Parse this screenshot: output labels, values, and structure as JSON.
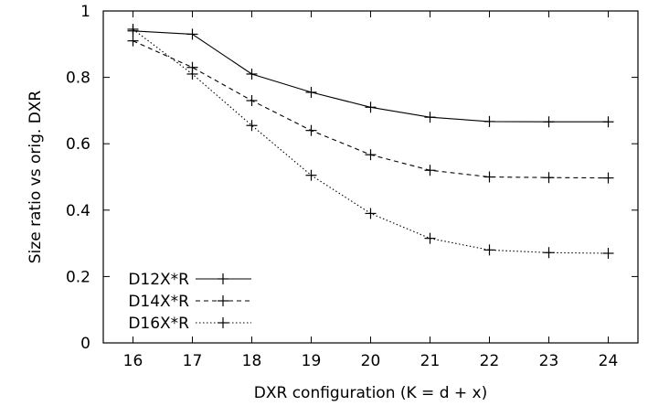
{
  "chart_data": {
    "type": "line",
    "title": "",
    "xlabel": "DXR configuration (K = d + x)",
    "ylabel": "Size ratio vs orig. DXR",
    "x": [
      16,
      17,
      18,
      19,
      20,
      21,
      22,
      23,
      24
    ],
    "xlim": [
      15.5,
      24.5
    ],
    "ylim": [
      0,
      1
    ],
    "x_ticks": [
      "16",
      "17",
      "18",
      "19",
      "20",
      "21",
      "22",
      "23",
      "24"
    ],
    "y_ticks": [
      "0",
      "0.2",
      "0.4",
      "0.6",
      "0.8",
      "1"
    ],
    "grid": false,
    "legend_position": "bottom-left",
    "series": [
      {
        "name": "D12X*R",
        "style": "solid",
        "values": [
          0.94,
          0.93,
          0.81,
          0.755,
          0.71,
          0.68,
          0.667,
          0.666,
          0.666
        ]
      },
      {
        "name": "D14X*R",
        "style": "dashed",
        "values": [
          0.91,
          0.83,
          0.73,
          0.64,
          0.567,
          0.52,
          0.5,
          0.498,
          0.497
        ]
      },
      {
        "name": "D16X*R",
        "style": "dotted",
        "values": [
          0.945,
          0.81,
          0.655,
          0.505,
          0.39,
          0.315,
          0.28,
          0.272,
          0.27
        ]
      }
    ]
  },
  "colors": {
    "axis": "#000000",
    "series": "#000000"
  }
}
